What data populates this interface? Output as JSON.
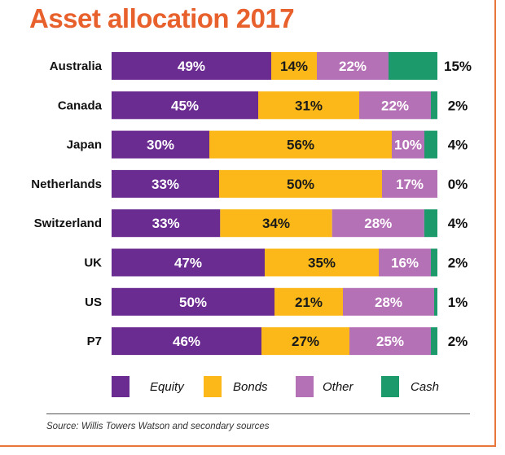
{
  "title": "Asset allocation 2017",
  "source": "Source: Willis Towers Watson and secondary sources",
  "colors": {
    "Equity": "#6b2c91",
    "Bonds": "#fbb818",
    "Other": "#b571b6",
    "Cash": "#1d9a6c",
    "title": "#e8602c"
  },
  "chart_data": {
    "type": "bar",
    "orientation": "horizontal",
    "stacked": true,
    "title": "Asset allocation 2017",
    "categories": [
      "Australia",
      "Canada",
      "Japan",
      "Netherlands",
      "Switzerland",
      "UK",
      "US",
      "P7"
    ],
    "series": [
      {
        "name": "Equity",
        "values": [
          49,
          45,
          30,
          33,
          33,
          47,
          50,
          46
        ],
        "labels": [
          "49%",
          "45%",
          "30%",
          "33%",
          "33%",
          "47%",
          "50%",
          "46%"
        ]
      },
      {
        "name": "Bonds",
        "values": [
          14,
          31,
          56,
          50,
          34,
          35,
          21,
          27
        ],
        "labels": [
          "14%",
          "31%",
          "56%",
          "50%",
          "34%",
          "35%",
          "21%",
          "27%"
        ]
      },
      {
        "name": "Other",
        "values": [
          22,
          22,
          10,
          17,
          28,
          16,
          28,
          25
        ],
        "labels": [
          "22%",
          "22%",
          "10%",
          "17%",
          "28%",
          "16%",
          "28%",
          "25%"
        ]
      },
      {
        "name": "Cash",
        "values": [
          15,
          2,
          4,
          0,
          4,
          2,
          1,
          2
        ],
        "labels": [
          "15%",
          "2%",
          "4%",
          "0%",
          "4%",
          "2%",
          "1%",
          "2%"
        ]
      }
    ],
    "xlim": [
      0,
      100
    ],
    "grid": false,
    "legend": "bottom"
  }
}
